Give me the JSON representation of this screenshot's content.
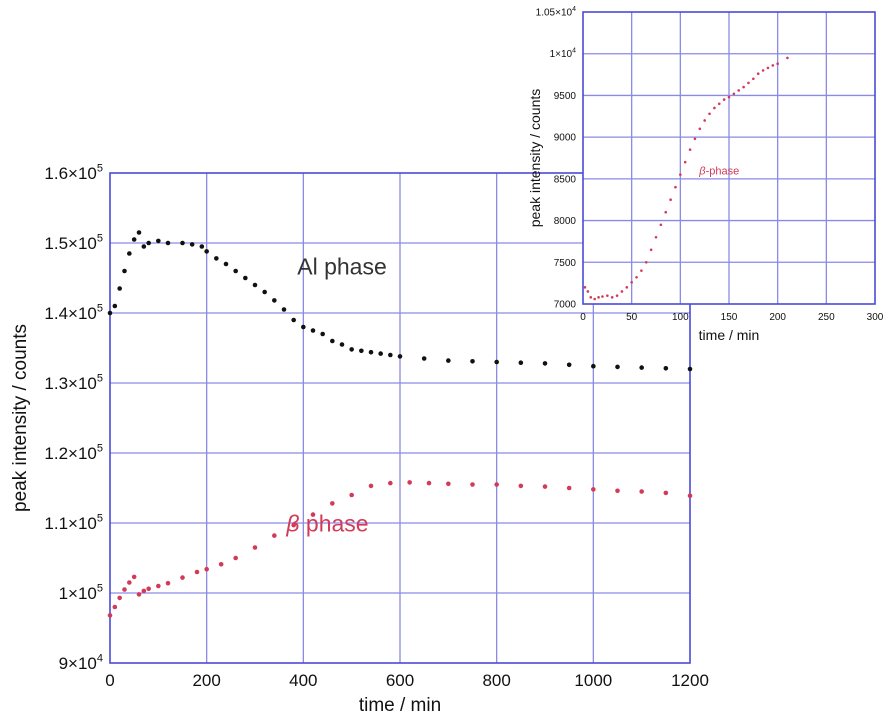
{
  "colors": {
    "frame": "#4a4ad8",
    "grid": "#8a8ae6",
    "al_series": "#111111",
    "beta_series": "#d23a58",
    "axis_text": "#111111"
  },
  "chart_data": [
    {
      "type": "scatter",
      "title": "",
      "xlabel": "time / min",
      "ylabel": "peak intensity / counts",
      "xlim": [
        0,
        1200
      ],
      "ylim": [
        90000,
        160000
      ],
      "grid": true,
      "x_ticks": [
        "0",
        "200",
        "400",
        "600",
        "800",
        "1000",
        "1200"
      ],
      "y_ticks": [
        {
          "mantissa": "9×10",
          "exp": "4"
        },
        {
          "mantissa": "1×10",
          "exp": "5"
        },
        {
          "mantissa": "1.1×10",
          "exp": "5"
        },
        {
          "mantissa": "1.2×10",
          "exp": "5"
        },
        {
          "mantissa": "1.3×10",
          "exp": "5"
        },
        {
          "mantissa": "1.4×10",
          "exp": "5"
        },
        {
          "mantissa": "1.5×10",
          "exp": "5"
        },
        {
          "mantissa": "1.6×10",
          "exp": "5"
        }
      ],
      "annotations": [
        {
          "text": "Al phase",
          "x": 480,
          "y": 145500,
          "color": "#333333",
          "italic_prefix": ""
        },
        {
          "text": " phase",
          "x": 450,
          "y": 108800,
          "color": "#d23a58",
          "italic_prefix": "β"
        }
      ],
      "series": [
        {
          "name": "Al phase",
          "color": "#111111",
          "x": [
            0,
            10,
            20,
            30,
            40,
            50,
            60,
            70,
            80,
            100,
            120,
            150,
            170,
            190,
            200,
            220,
            240,
            260,
            280,
            300,
            320,
            340,
            360,
            380,
            400,
            420,
            440,
            460,
            480,
            500,
            520,
            540,
            560,
            580,
            600,
            650,
            700,
            750,
            800,
            850,
            900,
            950,
            1000,
            1050,
            1100,
            1150,
            1200
          ],
          "y": [
            140000,
            141000,
            143500,
            146000,
            148500,
            150500,
            151500,
            149500,
            150000,
            150300,
            150000,
            150000,
            149800,
            149500,
            148800,
            147800,
            147000,
            146000,
            145000,
            144000,
            143000,
            141800,
            140500,
            139000,
            138000,
            137500,
            137000,
            136000,
            135500,
            134800,
            134600,
            134400,
            134200,
            134000,
            133800,
            133500,
            133200,
            133100,
            133000,
            132900,
            132800,
            132600,
            132400,
            132300,
            132200,
            132100,
            132000
          ]
        },
        {
          "name": "β phase",
          "color": "#d23a58",
          "x": [
            0,
            10,
            20,
            30,
            40,
            50,
            60,
            70,
            80,
            100,
            120,
            150,
            180,
            200,
            230,
            260,
            300,
            340,
            380,
            420,
            460,
            500,
            540,
            580,
            620,
            660,
            700,
            750,
            800,
            850,
            900,
            950,
            1000,
            1050,
            1100,
            1150,
            1200
          ],
          "y": [
            96800,
            98000,
            99300,
            100500,
            101500,
            102300,
            99800,
            100300,
            100600,
            101000,
            101400,
            102200,
            103000,
            103400,
            104100,
            105000,
            106500,
            108200,
            109700,
            111200,
            112800,
            114000,
            115300,
            115700,
            115800,
            115700,
            115600,
            115500,
            115500,
            115300,
            115200,
            115000,
            114800,
            114600,
            114500,
            114300,
            113900
          ]
        }
      ]
    },
    {
      "type": "scatter",
      "title": "",
      "xlabel": "time / min",
      "ylabel": "peak intensity / counts",
      "xlim": [
        0,
        300
      ],
      "ylim": [
        7000,
        10500
      ],
      "grid": true,
      "x_ticks": [
        "0",
        "50",
        "100",
        "150",
        "200",
        "250",
        "300"
      ],
      "y_ticks": [
        {
          "mantissa": "7000",
          "exp": ""
        },
        {
          "mantissa": "7500",
          "exp": ""
        },
        {
          "mantissa": "8000",
          "exp": ""
        },
        {
          "mantissa": "8500",
          "exp": ""
        },
        {
          "mantissa": "9000",
          "exp": ""
        },
        {
          "mantissa": "9500",
          "exp": ""
        },
        {
          "mantissa": "1×10",
          "exp": "4"
        },
        {
          "mantissa": "1.05×10",
          "exp": "4"
        }
      ],
      "annotations": [
        {
          "text": "-phase",
          "x": 140,
          "y": 8550,
          "color": "#d23a58",
          "italic_prefix": "β"
        }
      ],
      "series": [
        {
          "name": "β-phase",
          "color": "#d23a58",
          "x": [
            2,
            5,
            8,
            12,
            16,
            20,
            25,
            30,
            35,
            40,
            45,
            50,
            55,
            60,
            65,
            70,
            75,
            80,
            85,
            90,
            95,
            100,
            105,
            110,
            115,
            120,
            125,
            130,
            135,
            140,
            145,
            150,
            155,
            160,
            165,
            170,
            175,
            180,
            185,
            190,
            195,
            200,
            210
          ],
          "y": [
            7200,
            7150,
            7080,
            7060,
            7080,
            7090,
            7100,
            7080,
            7100,
            7150,
            7200,
            7260,
            7320,
            7400,
            7500,
            7650,
            7800,
            7950,
            8100,
            8250,
            8400,
            8550,
            8700,
            8850,
            8980,
            9100,
            9200,
            9280,
            9350,
            9400,
            9450,
            9480,
            9520,
            9560,
            9600,
            9650,
            9700,
            9760,
            9800,
            9830,
            9860,
            9880,
            9950
          ]
        }
      ]
    }
  ]
}
